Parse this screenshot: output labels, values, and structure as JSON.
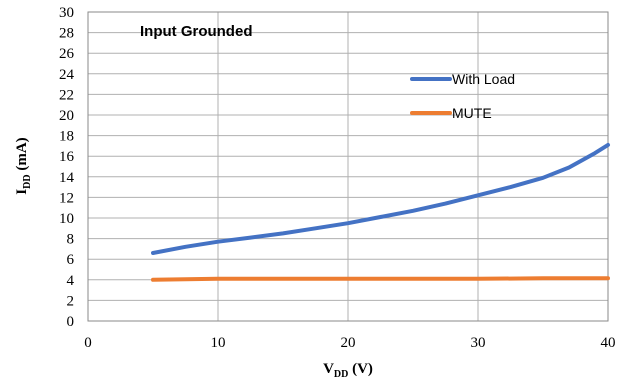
{
  "chart_data": {
    "type": "line",
    "annotation": "Input Grounded",
    "xlabel": {
      "main": "V",
      "sub": "DD",
      "unit": " (V)"
    },
    "ylabel": {
      "main": "I",
      "sub": "DD",
      "unit": " (mA)"
    },
    "xlim": [
      0,
      40
    ],
    "ylim": [
      0,
      30
    ],
    "x_ticks": [
      0,
      10,
      20,
      30,
      40
    ],
    "y_ticks": [
      0,
      2,
      4,
      6,
      8,
      10,
      12,
      14,
      16,
      18,
      20,
      22,
      24,
      26,
      28,
      30
    ],
    "grid": true,
    "legend_position": "top-right",
    "series": [
      {
        "name": "With Load",
        "color": "#4472c4",
        "x": [
          5,
          7.5,
          10,
          12.5,
          15,
          17.5,
          20,
          22.5,
          25,
          27.5,
          30,
          32.5,
          35,
          37,
          39,
          40
        ],
        "y": [
          6.6,
          7.2,
          7.7,
          8.1,
          8.5,
          9.0,
          9.5,
          10.1,
          10.7,
          11.4,
          12.2,
          13.0,
          13.9,
          14.9,
          16.3,
          17.1
        ]
      },
      {
        "name": "MUTE",
        "color": "#ed7d31",
        "x": [
          5,
          7.5,
          10,
          15,
          20,
          25,
          30,
          35,
          40
        ],
        "y": [
          4.0,
          4.05,
          4.1,
          4.1,
          4.1,
          4.1,
          4.1,
          4.15,
          4.15
        ]
      }
    ]
  }
}
